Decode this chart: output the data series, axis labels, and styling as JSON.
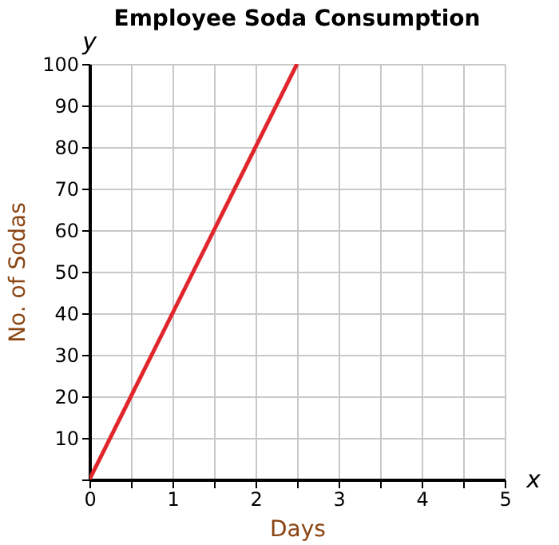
{
  "chart_data": {
    "type": "line",
    "title": "Employee Soda Consumption",
    "xlabel": "Days",
    "ylabel": "No. of Sodas",
    "annotations": [
      "y",
      "x"
    ],
    "x": [
      0,
      2.5
    ],
    "series": [
      {
        "color": "#e0262b",
        "values": [
          0,
          100
        ]
      }
    ],
    "xlim": [
      0,
      5
    ],
    "xticks": [
      0,
      {
        "value": 0.5,
        "label": null
      },
      1,
      {
        "value": 1.5,
        "label": null
      },
      2,
      {
        "value": 2.5,
        "label": null
      },
      3,
      {
        "value": 3.5,
        "label": null
      },
      4,
      {
        "value": 4.5,
        "label": null
      },
      5
    ],
    "ylim": [
      0,
      100
    ],
    "yticks": [
      {
        "value": 0,
        "label": null
      },
      10,
      20,
      30,
      40,
      50,
      60,
      70,
      80,
      90,
      100
    ],
    "grid": true,
    "marker": "none",
    "line_style": "solid"
  }
}
